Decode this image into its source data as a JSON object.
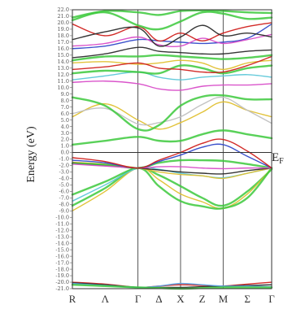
{
  "chart_data": {
    "type": "line",
    "ylabel": "Energy (eV)",
    "fermi_label": "E",
    "fermi_sub": "F",
    "ylim": [
      -21,
      22
    ],
    "fermi_level": 0,
    "y_ticks": [
      22,
      21,
      20,
      19,
      18,
      17,
      16,
      15,
      14,
      13,
      12,
      11,
      10,
      9,
      8,
      7,
      6,
      5,
      4,
      3,
      2,
      1,
      0,
      -1,
      -2,
      -3,
      -4,
      -5,
      -6,
      -7,
      -8,
      -9,
      -10,
      -11,
      -12,
      -13,
      -14,
      -15,
      -16,
      -17,
      -18,
      -19,
      -20,
      -21
    ],
    "y_tick_labels": [
      "22.0",
      "21.0",
      "20.0",
      "19.0",
      "18.0",
      "17.0",
      "16.0",
      "15.0",
      "14.0",
      "13.0",
      "12.0",
      "11.0",
      "10.0",
      "9.0",
      "8.0",
      "7.0",
      "6.0",
      "5.0",
      "4.0",
      "3.0",
      "2.0",
      "1.0",
      "0.0",
      "-1.0",
      "-2.0",
      "-3.0",
      "-4.0",
      "-5.0",
      "-6.0",
      "-7.0",
      "-8.0",
      "-9.0",
      "-10.0",
      "-11.0",
      "-12.0",
      "-13.0",
      "-14.0",
      "-15.0",
      "-16.0",
      "-17.0",
      "-18.0",
      "-19.0",
      "-20.0",
      "-21.0"
    ],
    "kpoints": [
      {
        "label": "R",
        "x": 0
      },
      {
        "label": "Λ",
        "x": 0.5
      },
      {
        "label": "Γ",
        "x": 1.0
      },
      {
        "label": "Δ",
        "x": 1.32
      },
      {
        "label": "X",
        "x": 1.65
      },
      {
        "label": "Z",
        "x": 1.98
      },
      {
        "label": "M",
        "x": 2.3
      },
      {
        "label": "Σ",
        "x": 2.67
      },
      {
        "label": "Γ",
        "x": 3.04
      }
    ],
    "vlines": [
      0,
      1.0,
      1.65,
      2.3,
      3.04
    ],
    "x": [
      0,
      0.5,
      1.0,
      1.32,
      1.65,
      1.98,
      2.3,
      2.67,
      3.04
    ],
    "series": [
      {
        "color": "#d0201c",
        "values": [
          -20.0,
          -20.3,
          -20.8,
          -20.6,
          -20.4,
          -20.5,
          -20.6,
          -20.3,
          -20.0
        ]
      },
      {
        "color": "#2a2a2a",
        "values": [
          -20.1,
          -20.4,
          -20.8,
          -20.8,
          -20.8,
          -20.7,
          -20.6,
          -20.5,
          -20.4
        ]
      },
      {
        "color": "#5aa0e0",
        "values": [
          -20.2,
          -20.5,
          -20.8,
          -20.6,
          -20.2,
          -20.4,
          -20.6,
          -20.6,
          -20.7
        ]
      },
      {
        "color": "#3cc93c",
        "values": [
          -20.4,
          -20.6,
          -20.8,
          -20.9,
          -21.0,
          -20.9,
          -20.8,
          -20.8,
          -20.8
        ]
      },
      {
        "color": "#3cc93c",
        "values": [
          -6.5,
          -4.5,
          -2.4,
          -3.5,
          -5.2,
          -7.0,
          -8.2,
          -6.0,
          -2.6
        ]
      },
      {
        "color": "#e0c030",
        "values": [
          -9.0,
          -6.0,
          -2.4,
          -4.2,
          -6.4,
          -7.6,
          -8.6,
          -6.4,
          -2.4
        ]
      },
      {
        "color": "#3cc93c",
        "values": [
          -8.2,
          -5.5,
          -2.4,
          -5.2,
          -7.5,
          -8.3,
          -8.6,
          -7.0,
          -2.4
        ]
      },
      {
        "color": "#5cc7d8",
        "values": [
          -7.5,
          -5.0,
          -2.4,
          -2.6,
          -3.2,
          -3.6,
          -3.9,
          -3.2,
          -2.4
        ]
      },
      {
        "color": "#e0c030",
        "values": [
          -1.5,
          -1.8,
          -2.4,
          -3.0,
          -3.4,
          -3.6,
          -4.0,
          -3.2,
          -2.4
        ]
      },
      {
        "color": "#2a2a2a",
        "values": [
          -1.6,
          -2.0,
          -2.4,
          -2.7,
          -3.0,
          -3.2,
          -3.3,
          -2.8,
          -2.4
        ]
      },
      {
        "color": "#3cc93c",
        "values": [
          -1.7,
          -1.9,
          -2.4,
          -1.6,
          -1.2,
          -1.2,
          -1.3,
          -1.8,
          -2.4
        ]
      },
      {
        "color": "#d84cc8",
        "values": [
          -1.8,
          -2.1,
          -2.4,
          -2.2,
          -2.2,
          -2.4,
          -2.5,
          -2.4,
          -2.4
        ]
      },
      {
        "color": "#3048c8",
        "values": [
          -1.2,
          -1.6,
          -2.4,
          -1.4,
          -0.4,
          0.8,
          1.2,
          -0.6,
          -2.4
        ]
      },
      {
        "color": "#d0201c",
        "values": [
          -0.8,
          -1.4,
          -2.4,
          -1.2,
          0.0,
          1.4,
          2.0,
          0.2,
          -2.4
        ]
      },
      {
        "color": "#3cc93c",
        "values": [
          1.2,
          1.8,
          2.4,
          1.8,
          1.8,
          2.8,
          3.4,
          2.8,
          2.2
        ]
      },
      {
        "color": "#e0c030",
        "values": [
          5.5,
          7.5,
          5.0,
          3.6,
          4.6,
          6.2,
          7.8,
          6.5,
          5.5
        ]
      },
      {
        "color": "#c0c0c0",
        "values": [
          6.0,
          6.8,
          4.4,
          4.6,
          5.5,
          7.4,
          8.5,
          6.5,
          4.5
        ]
      },
      {
        "color": "#3cc93c",
        "values": [
          8.5,
          7.2,
          3.6,
          4.2,
          7.2,
          8.6,
          8.8,
          8.2,
          8.2
        ]
      },
      {
        "color": "#d84cc8",
        "values": [
          10.8,
          11.0,
          10.6,
          9.8,
          9.6,
          10.2,
          10.4,
          10.4,
          10.6
        ]
      },
      {
        "color": "#5cc7d8",
        "values": [
          11.2,
          11.8,
          12.4,
          11.6,
          11.2,
          11.6,
          11.8,
          12.0,
          11.6
        ]
      },
      {
        "color": "#3cc93c",
        "values": [
          12.2,
          12.6,
          12.4,
          12.2,
          13.4,
          13.0,
          12.2,
          13.0,
          13.4
        ]
      },
      {
        "color": "#e0c030",
        "values": [
          13.8,
          14.0,
          13.6,
          13.8,
          14.2,
          13.8,
          12.8,
          13.8,
          14.2
        ]
      },
      {
        "color": "#d0201c",
        "values": [
          12.8,
          13.2,
          13.8,
          13.0,
          12.8,
          12.4,
          12.4,
          13.4,
          14.8
        ]
      },
      {
        "color": "#3cc93c",
        "values": [
          14.2,
          14.8,
          14.8,
          15.0,
          14.8,
          14.6,
          14.4,
          14.6,
          15.0
        ]
      },
      {
        "color": "#2a2a2a",
        "values": [
          14.6,
          15.2,
          16.2,
          15.6,
          15.4,
          15.2,
          15.2,
          15.6,
          15.8
        ]
      },
      {
        "color": "#3048c8",
        "values": [
          16.0,
          16.4,
          17.4,
          17.2,
          17.0,
          16.8,
          17.0,
          17.6,
          19.8
        ]
      },
      {
        "color": "#d84cc8",
        "values": [
          16.4,
          16.8,
          17.8,
          16.6,
          16.4,
          17.6,
          16.8,
          17.4,
          18.2
        ]
      },
      {
        "color": "#d0201c",
        "values": [
          19.8,
          18.0,
          19.4,
          17.2,
          18.4,
          17.2,
          18.4,
          19.4,
          20.0
        ]
      },
      {
        "color": "#3cc93c",
        "values": [
          20.4,
          21.6,
          19.6,
          19.0,
          20.2,
          21.6,
          21.4,
          20.6,
          20.8
        ]
      },
      {
        "color": "#2a2a2a",
        "values": [
          17.4,
          18.6,
          19.2,
          16.4,
          17.8,
          19.6,
          18.0,
          18.4,
          17.8
        ]
      },
      {
        "color": "#3cc93c",
        "values": [
          20.8,
          21.8,
          21.6,
          21.2,
          21.8,
          21.9,
          21.8,
          21.6,
          21.5
        ]
      }
    ]
  }
}
